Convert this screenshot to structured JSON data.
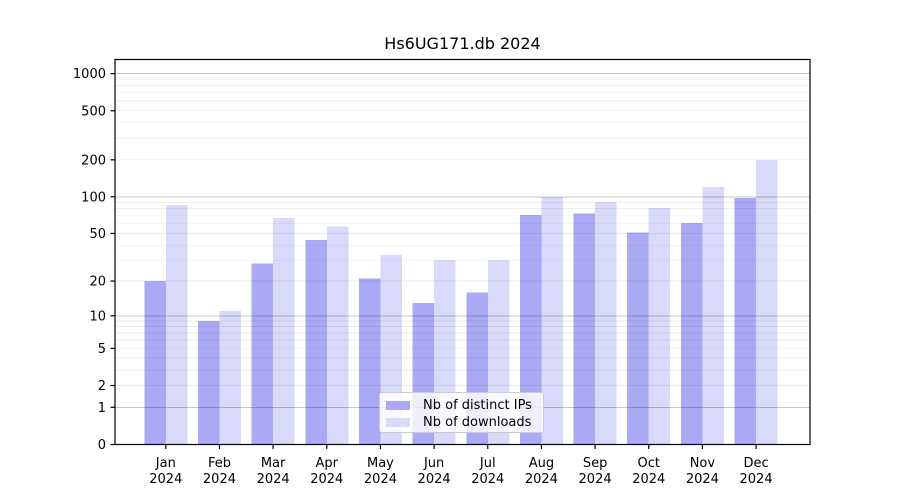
{
  "title": "Hs6UG171.db 2024",
  "chart_data": {
    "type": "bar",
    "title": "Hs6UG171.db 2024",
    "yscale": "log1p",
    "grid": true,
    "legend_position": "lower center inside",
    "categories": [
      "Jan",
      "Feb",
      "Mar",
      "Apr",
      "May",
      "Jun",
      "Jul",
      "Aug",
      "Sep",
      "Oct",
      "Nov",
      "Dec"
    ],
    "x_year_label": "2024",
    "series": [
      {
        "name": "Nb of distinct IPs",
        "color": "#a9a9f5",
        "values": [
          20,
          9,
          28,
          44,
          21,
          13,
          16,
          71,
          73,
          51,
          61,
          98
        ]
      },
      {
        "name": "Nb of downloads",
        "color": "#d9d9f9",
        "values": [
          86,
          11,
          67,
          57,
          33,
          30,
          30,
          100,
          91,
          81,
          120,
          200
        ]
      }
    ],
    "yticks": [
      0,
      1,
      2,
      5,
      10,
      20,
      50,
      100,
      200,
      500,
      1000
    ],
    "minor_gridlines": [
      3,
      4,
      6,
      7,
      8,
      9,
      30,
      40,
      60,
      70,
      80,
      90,
      300,
      400,
      600,
      700,
      800,
      900
    ],
    "decade_gridlines": [
      1,
      10,
      100,
      1000
    ],
    "ylim": [
      0,
      1300
    ]
  },
  "colors": {
    "bar_distinct_ips": "#a9a9f5",
    "bar_downloads": "#d9d9f9",
    "grid_decade": "rgba(0,0,0,0.22)",
    "grid_minor": "rgba(0,0,0,0.065)",
    "axis": "#000000",
    "background": "#ffffff"
  }
}
